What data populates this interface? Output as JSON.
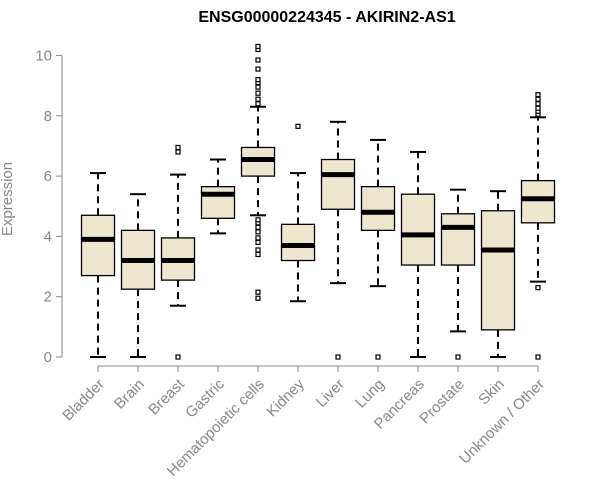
{
  "chart_data": {
    "type": "boxplot",
    "title": "ENSG00000224345 - AKIRIN2-AS1",
    "xlabel": "",
    "ylabel": "Expression",
    "ylim": [
      0,
      10
    ],
    "yticks": [
      0,
      2,
      4,
      6,
      8,
      10
    ],
    "grid": false,
    "box_color": "#ede7d0",
    "line_color": "#000000",
    "axis_color": "#888888",
    "categories": [
      "Bladder",
      "Brain",
      "Breast",
      "Gastric",
      "Hematopoietic cells",
      "Kidney",
      "Liver",
      "Lung",
      "Pancreas",
      "Prostate",
      "Skin",
      "Unknown / Other"
    ],
    "boxes": [
      {
        "category": "Bladder",
        "whisker_low": 0.0,
        "q1": 2.7,
        "median": 3.9,
        "q3": 4.7,
        "whisker_high": 6.1,
        "outliers": []
      },
      {
        "category": "Brain",
        "whisker_low": 0.0,
        "q1": 2.25,
        "median": 3.2,
        "q3": 4.2,
        "whisker_high": 5.4,
        "outliers": []
      },
      {
        "category": "Breast",
        "whisker_low": 1.7,
        "q1": 2.55,
        "median": 3.2,
        "q3": 3.95,
        "whisker_high": 6.05,
        "outliers": [
          0.0,
          6.8,
          6.95
        ]
      },
      {
        "category": "Gastric",
        "whisker_low": 4.1,
        "q1": 4.6,
        "median": 5.4,
        "q3": 5.65,
        "whisker_high": 6.55,
        "outliers": []
      },
      {
        "category": "Hematopoietic cells",
        "whisker_low": 4.7,
        "q1": 6.0,
        "median": 6.55,
        "q3": 6.95,
        "whisker_high": 8.3,
        "outliers": [
          1.95,
          2.15,
          3.4,
          3.55,
          3.8,
          3.95,
          4.15,
          4.3,
          4.45,
          4.55,
          8.4,
          8.55,
          8.75,
          8.95,
          9.1,
          9.2,
          9.55,
          9.85,
          10.2,
          10.3
        ]
      },
      {
        "category": "Kidney",
        "whisker_low": 1.85,
        "q1": 3.2,
        "median": 3.7,
        "q3": 4.4,
        "whisker_high": 6.1,
        "outliers": [
          7.65
        ]
      },
      {
        "category": "Liver",
        "whisker_low": 2.45,
        "q1": 4.9,
        "median": 6.05,
        "q3": 6.55,
        "whisker_high": 7.8,
        "outliers": [
          0.0
        ]
      },
      {
        "category": "Lung",
        "whisker_low": 2.35,
        "q1": 4.2,
        "median": 4.8,
        "q3": 5.65,
        "whisker_high": 7.2,
        "outliers": [
          0.0
        ]
      },
      {
        "category": "Pancreas",
        "whisker_low": 0.0,
        "q1": 3.05,
        "median": 4.05,
        "q3": 5.4,
        "whisker_high": 6.8,
        "outliers": []
      },
      {
        "category": "Prostate",
        "whisker_low": 0.85,
        "q1": 3.05,
        "median": 4.3,
        "q3": 4.75,
        "whisker_high": 5.55,
        "outliers": [
          0.0
        ]
      },
      {
        "category": "Skin",
        "whisker_low": 0.0,
        "q1": 0.9,
        "median": 3.55,
        "q3": 4.85,
        "whisker_high": 5.5,
        "outliers": []
      },
      {
        "category": "Unknown / Other",
        "whisker_low": 2.5,
        "q1": 4.45,
        "median": 5.25,
        "q3": 5.85,
        "whisker_high": 7.95,
        "outliers": [
          0.0,
          2.3,
          8.05,
          8.15,
          8.25,
          8.4,
          8.55,
          8.7
        ]
      }
    ]
  }
}
